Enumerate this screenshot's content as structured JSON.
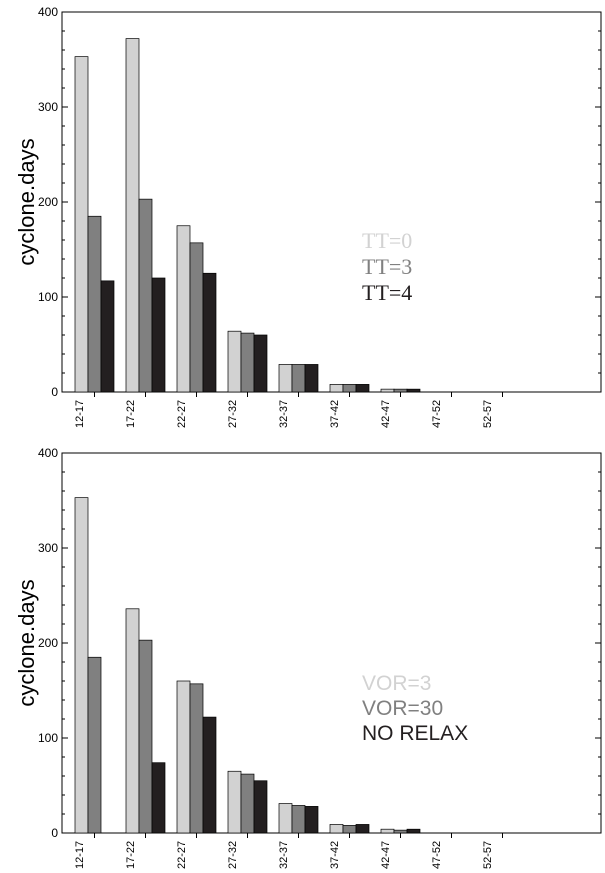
{
  "chart_data": [
    {
      "type": "bar",
      "title": "",
      "xlabel": "",
      "ylabel": "cyclone.days",
      "ylim": [
        0,
        400
      ],
      "yticks": [
        0,
        100,
        200,
        300,
        400
      ],
      "categories": [
        "12-17",
        "17-22",
        "22-27",
        "27-32",
        "32-37",
        "37-42",
        "42-47",
        "47-52",
        "52-57"
      ],
      "series": [
        {
          "name": "TT=0",
          "color": "#d2d2d2",
          "values": [
            353,
            372,
            175,
            64,
            29,
            8,
            3,
            0,
            0
          ]
        },
        {
          "name": "TT=3",
          "color": "#808080",
          "values": [
            185,
            203,
            157,
            62,
            29,
            8,
            3,
            0,
            0
          ]
        },
        {
          "name": "TT=4",
          "color": "#231f20",
          "values": [
            117,
            120,
            125,
            60,
            29,
            8,
            3,
            0,
            0
          ]
        }
      ],
      "legend": "center-right",
      "grid": false
    },
    {
      "type": "bar",
      "title": "",
      "xlabel": "",
      "ylabel": "cyclone.days",
      "ylim": [
        0,
        400
      ],
      "yticks": [
        0,
        100,
        200,
        300,
        400
      ],
      "categories": [
        "12-17",
        "17-22",
        "22-27",
        "27-32",
        "32-37",
        "37-42",
        "42-47",
        "47-52",
        "52-57"
      ],
      "series": [
        {
          "name": "VOR=3",
          "color": "#d2d2d2",
          "values": [
            353,
            236,
            160,
            65,
            31,
            9,
            4,
            0,
            0
          ]
        },
        {
          "name": "VOR=30",
          "color": "#808080",
          "values": [
            185,
            203,
            157,
            62,
            29,
            8,
            3,
            0,
            0
          ]
        },
        {
          "name": "NO RELAX",
          "color": "#231f20",
          "values": [
            0,
            74,
            122,
            55,
            28,
            9,
            4,
            0,
            0
          ]
        }
      ],
      "legend": "center-right",
      "grid": false
    }
  ]
}
